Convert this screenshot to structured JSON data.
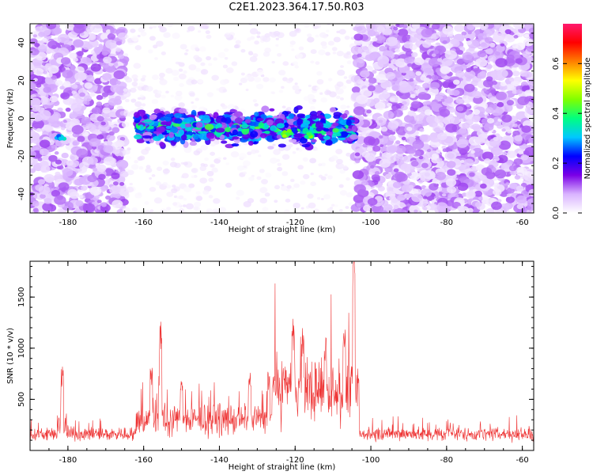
{
  "title": "C2E1.2023.364.17.50.R03",
  "chart_data": [
    {
      "type": "heatmap",
      "xlabel": "Height of straight line (km)",
      "ylabel": "Frequency (Hz)",
      "xlim": [
        -190,
        -57
      ],
      "ylim": [
        -50,
        50
      ],
      "xticks": [
        -180,
        -160,
        -140,
        -120,
        -100,
        -80,
        -60
      ],
      "yticks": [
        -40,
        -20,
        0,
        20,
        40
      ],
      "colorbar": {
        "label": "Normalized spectral amplitude",
        "range": [
          0,
          0.76
        ],
        "ticks": [
          0.0,
          0.2,
          0.4,
          0.6
        ],
        "colors": [
          "#ffffff",
          "#d9b3ff",
          "#7a00e6",
          "#0000ff",
          "#00c8ff",
          "#00ff80",
          "#80ff00",
          "#ffff00",
          "#ff8000",
          "#ff0000",
          "#ff1a6e"
        ]
      },
      "regions": [
        {
          "x": [
            -190,
            -165
          ],
          "level": "dense",
          "amplitude": 0.1
        },
        {
          "x": [
            -165,
            -104
          ],
          "level": "sparse",
          "amplitude": 0.03
        },
        {
          "x": [
            -104,
            -57
          ],
          "level": "dense",
          "amplitude": 0.1
        }
      ],
      "band": {
        "x": [
          -162,
          -104
        ],
        "y_center": -5,
        "y_width": 12,
        "amplitude_peak": 0.45
      },
      "hotspots": [
        {
          "x": -182,
          "y": -10,
          "amplitude": 0.35
        },
        {
          "x": -122,
          "y": -8,
          "amplitude": 0.55
        },
        {
          "x": -116,
          "y": -9,
          "amplitude": 0.5
        }
      ]
    },
    {
      "type": "line",
      "xlabel": "Height of straight line (km)",
      "ylabel": "SNR (10 * v/v)",
      "xlim": [
        -190,
        -57
      ],
      "ylim": [
        0,
        1850
      ],
      "xticks": [
        -180,
        -160,
        -140,
        -120,
        -100,
        -80,
        -60
      ],
      "yticks": [
        500,
        1000,
        1500
      ],
      "color": "#ee3333",
      "baseline_segments": [
        {
          "x": [
            -190,
            -162
          ],
          "mean": 160,
          "noise": 80
        },
        {
          "x": [
            -162,
            -126
          ],
          "mean": 300,
          "noise": 180
        },
        {
          "x": [
            -126,
            -103
          ],
          "mean": 600,
          "noise": 380
        },
        {
          "x": [
            -103,
            -57
          ],
          "mean": 160,
          "noise": 80
        }
      ],
      "peaks": [
        {
          "x": -181.5,
          "y": 820
        },
        {
          "x": -158,
          "y": 850
        },
        {
          "x": -155.5,
          "y": 1260
        },
        {
          "x": -150,
          "y": 720
        },
        {
          "x": -132,
          "y": 770
        },
        {
          "x": -127,
          "y": 770
        },
        {
          "x": -120.5,
          "y": 1300
        },
        {
          "x": -118,
          "y": 1200
        },
        {
          "x": -112,
          "y": 1130
        },
        {
          "x": -107,
          "y": 1200
        },
        {
          "x": -104.5,
          "y": 1850
        }
      ]
    }
  ]
}
